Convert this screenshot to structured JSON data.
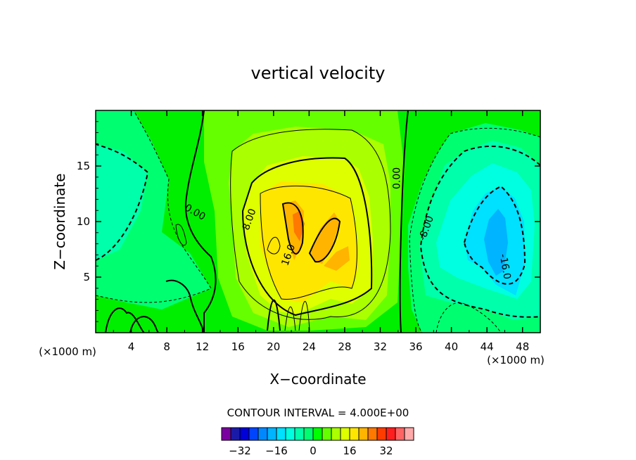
{
  "chart_data": {
    "type": "heatmap",
    "title": "vertical velocity",
    "xlabel": "X−coordinate",
    "ylabel": "Z−coordinate",
    "x_unit_left": "(×1000 m)",
    "x_unit_right": "(×1000 m)",
    "xlim": [
      0,
      50
    ],
    "ylim": [
      0,
      20
    ],
    "x_ticks": [
      4,
      8,
      12,
      16,
      20,
      24,
      28,
      32,
      36,
      40,
      44,
      48
    ],
    "y_ticks": [
      5,
      10,
      15
    ],
    "x_tick_labels": [
      "4",
      "8",
      "12",
      "16",
      "20",
      "24",
      "28",
      "32",
      "36",
      "40",
      "44",
      "48"
    ],
    "y_tick_labels": [
      "5",
      "10",
      "15"
    ],
    "contour_labels": [
      {
        "text": "0.00",
        "x": 11,
        "y": 10.6
      },
      {
        "text": "8.00",
        "x": 17.6,
        "y": 10.1
      },
      {
        "text": "16.0",
        "x": 22.0,
        "y": 6.9
      },
      {
        "text": "0.00",
        "x": 34.2,
        "y": 13.9
      },
      {
        "text": "-8.00",
        "x": 37.5,
        "y": 9.3
      },
      {
        "text": "-16.0",
        "x": 45.7,
        "y": 5.9
      }
    ],
    "contour_interval_label": "CONTOUR INTERVAL = 4.000E+00",
    "colorbar": {
      "levels": [
        -36,
        -32,
        -28,
        -24,
        -20,
        -16,
        -12,
        -8,
        -4,
        0,
        4,
        8,
        12,
        16,
        20,
        24,
        28,
        32,
        36
      ],
      "colors": [
        "#7b00a0",
        "#1a1aa8",
        "#0000d8",
        "#0044ff",
        "#0088ff",
        "#00b4ff",
        "#00e0ff",
        "#00ffe0",
        "#00ffaa",
        "#00ff70",
        "#00ff00",
        "#66ff00",
        "#aaff00",
        "#ddff00",
        "#ffe600",
        "#ffb400",
        "#ff7800",
        "#ff3c00",
        "#ff1e1e",
        "#ff6464",
        "#ffaaaa"
      ],
      "tick_values": [
        -32,
        -16,
        0,
        16,
        32
      ],
      "tick_labels": [
        "−32",
        "−16",
        "0",
        "16",
        "32"
      ]
    },
    "field_colors": {
      "zero_band": "#00ee00",
      "pos_4": "#66ff00",
      "pos_8": "#aaff00",
      "pos_12": "#ddff00",
      "pos_16": "#ffe600",
      "pos_20": "#ffb400",
      "pos_24": "#ff7800",
      "neg_4": "#00ff70",
      "neg_8": "#00ffaa",
      "neg_12": "#00ffe0",
      "neg_16": "#00e0ff",
      "neg_20": "#00b4ff"
    }
  }
}
